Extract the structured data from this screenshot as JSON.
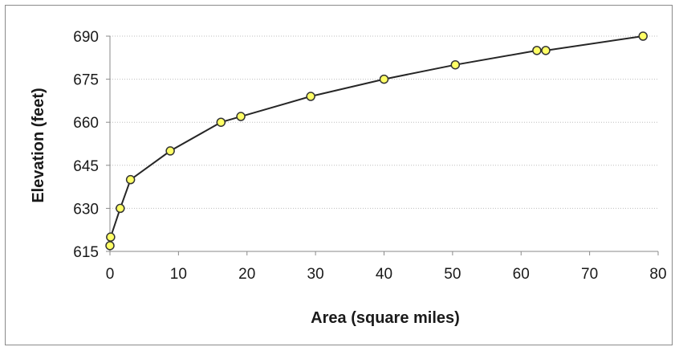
{
  "chart_data": {
    "type": "line",
    "title": "",
    "xlabel": "Area (square miles)",
    "ylabel": "Elevation (feet)",
    "xlim": [
      0,
      80
    ],
    "ylim": [
      615,
      690
    ],
    "x_ticks": [
      0,
      10,
      20,
      30,
      40,
      50,
      60,
      70,
      80
    ],
    "y_ticks": [
      615,
      630,
      645,
      660,
      675,
      690
    ],
    "grid": "horizontal dotted",
    "legend": "none",
    "colors": {
      "line": "#262626",
      "marker_fill": "#ffff66",
      "marker_edge": "#333333",
      "grid": "#bdbdbd"
    },
    "series": [
      {
        "x": [
          0.0,
          0.1,
          1.5,
          3.0,
          8.8,
          16.2,
          19.1,
          29.3,
          40.0,
          50.4,
          62.3,
          63.6,
          77.8
        ],
        "y": [
          617,
          620,
          630,
          640,
          650,
          660,
          662,
          669,
          675,
          680,
          685,
          685,
          690
        ]
      }
    ]
  }
}
